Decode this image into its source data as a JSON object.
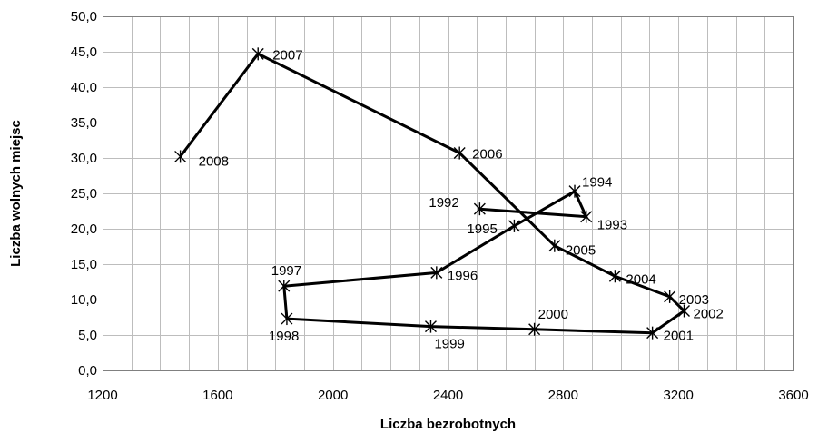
{
  "chart_data": {
    "type": "scatter",
    "title": "",
    "xlabel": "Liczba bezrobotnych",
    "ylabel": "Liczba wolnych miejsc",
    "xlim": [
      1200,
      3600
    ],
    "ylim": [
      0,
      50
    ],
    "x_ticks": [
      1200,
      1600,
      2000,
      2400,
      2800,
      3200,
      3600
    ],
    "x_tick_labels": [
      "1200",
      "1600",
      "2000",
      "2400",
      "2800",
      "3200",
      "3600"
    ],
    "y_ticks": [
      0,
      5,
      10,
      15,
      20,
      25,
      30,
      35,
      40,
      45,
      50
    ],
    "y_tick_labels": [
      "0,0",
      "5,0",
      "10,0",
      "15,0",
      "20,0",
      "25,0",
      "30,0",
      "35,0",
      "40,0",
      "45,0",
      "50,0"
    ],
    "grid": "on (vertical minor every 100, horizontal every 5)",
    "legend": "none",
    "line_color": "#000000",
    "marker": "asterisk",
    "points": [
      {
        "label": "1992",
        "x": 2510,
        "y": 22.8
      },
      {
        "label": "1993",
        "x": 2880,
        "y": 21.7
      },
      {
        "label": "1994",
        "x": 2840,
        "y": 25.3
      },
      {
        "label": "1995",
        "x": 2630,
        "y": 20.4
      },
      {
        "label": "1996",
        "x": 2360,
        "y": 13.8
      },
      {
        "label": "1997",
        "x": 1830,
        "y": 11.9
      },
      {
        "label": "1998",
        "x": 1840,
        "y": 7.3
      },
      {
        "label": "1999",
        "x": 2340,
        "y": 6.2
      },
      {
        "label": "2000",
        "x": 2700,
        "y": 5.8
      },
      {
        "label": "2001",
        "x": 3110,
        "y": 5.3
      },
      {
        "label": "2002",
        "x": 3220,
        "y": 8.4
      },
      {
        "label": "2003",
        "x": 3170,
        "y": 10.4
      },
      {
        "label": "2004",
        "x": 2980,
        "y": 13.3
      },
      {
        "label": "2005",
        "x": 2770,
        "y": 17.6
      },
      {
        "label": "2006",
        "x": 2440,
        "y": 30.7
      },
      {
        "label": "2007",
        "x": 1740,
        "y": 44.7
      },
      {
        "label": "2008",
        "x": 1470,
        "y": 30.2
      }
    ]
  }
}
